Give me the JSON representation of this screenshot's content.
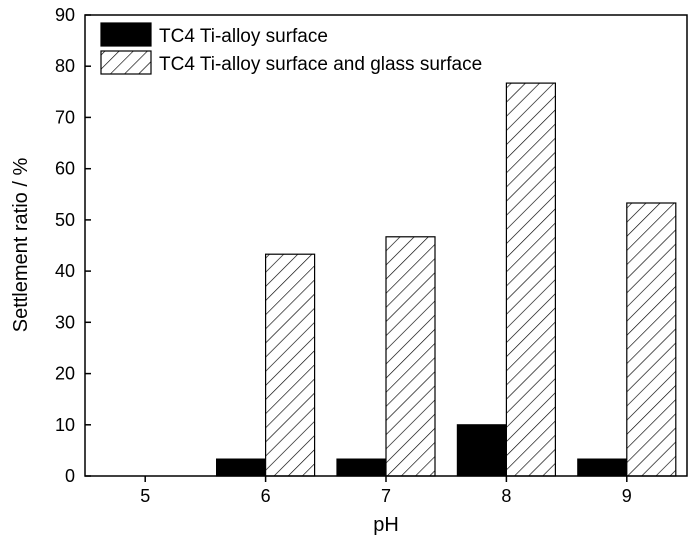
{
  "chart_data": {
    "type": "bar",
    "title": "",
    "xlabel": "pH",
    "ylabel": "Settlement ratio / %",
    "categories": [
      "5",
      "6",
      "7",
      "8",
      "9"
    ],
    "ylim": [
      0,
      90
    ],
    "yticks": [
      "0",
      "10",
      "20",
      "30",
      "40",
      "50",
      "60",
      "70",
      "80",
      "90"
    ],
    "grid": false,
    "legend_position": "top-left",
    "series": [
      {
        "name": "TC4 Ti-alloy surface",
        "fill": "solid",
        "color": "#000000",
        "values": [
          0,
          3.3,
          3.3,
          10,
          3.3
        ]
      },
      {
        "name": "TC4 Ti-alloy surface and glass surface",
        "fill": "hatched",
        "color": "#000000",
        "values": [
          0,
          43.3,
          46.7,
          76.7,
          53.3
        ]
      }
    ]
  }
}
